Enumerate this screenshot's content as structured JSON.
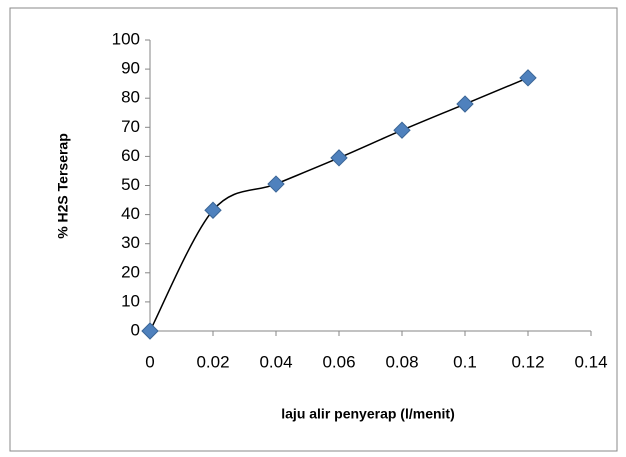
{
  "chart_data": {
    "type": "scatter",
    "x_label": "laju alir penyerap (l/menit)",
    "y_label": "% H2S Terserap",
    "x": [
      0,
      0.02,
      0.04,
      0.06,
      0.08,
      0.1,
      0.12
    ],
    "values": [
      0,
      41.5,
      50.5,
      59.5,
      69,
      78,
      87
    ],
    "color": "#4f81bd",
    "smooth_line": true,
    "xlim": [
      0,
      0.14
    ],
    "xticks": [
      0,
      0.02,
      0.04,
      0.06,
      0.08,
      0.1,
      0.12,
      0.14
    ],
    "ylim": [
      0,
      100
    ],
    "yticks": [
      0,
      10,
      20,
      30,
      40,
      50,
      60,
      70,
      80,
      90,
      100
    ]
  }
}
